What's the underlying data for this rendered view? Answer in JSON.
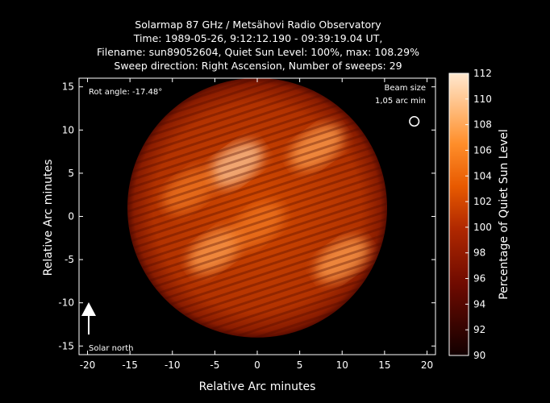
{
  "chart_data": {
    "type": "heatmap",
    "title_lines": [
      "Solarmap 87 GHz / Metsähovi Radio Observatory",
      "Time: 1989-05-26,  9:12:12.190 - 09:39:19.04 UT,",
      "Filename: sun89052604, Quiet Sun Level: 100%, max: 108.29%",
      "Sweep direction: Right Ascension, Number of sweeps: 29"
    ],
    "xlabel": "Relative Arc minutes",
    "ylabel": "Relative Arc minutes",
    "xlim": [
      -21,
      21
    ],
    "ylim": [
      -16,
      16
    ],
    "xticks": [
      -20,
      -15,
      -10,
      -5,
      0,
      5,
      10,
      15,
      20
    ],
    "yticks": [
      -15,
      -10,
      -5,
      0,
      5,
      10,
      15
    ],
    "colorbar": {
      "label": "Percentage of Quiet Sun Level",
      "min": 90,
      "max": 112,
      "ticks": [
        90,
        92,
        94,
        96,
        98,
        100,
        102,
        104,
        106,
        108,
        110,
        112
      ]
    },
    "annotations": {
      "rot_angle": "Rot angle: -17.48°",
      "beam_size_line1": "Beam size",
      "beam_size_line2": "1,05 arc min",
      "solar_north": "Solar north"
    },
    "disk": {
      "center": [
        0,
        1
      ],
      "radius": 15.3
    },
    "beam": {
      "center": [
        18.5,
        11
      ],
      "radius": 0.55
    },
    "bright_regions": [
      {
        "x": -2.5,
        "y": 6,
        "value": 108
      },
      {
        "x": 7,
        "y": 8,
        "value": 106
      },
      {
        "x": -5,
        "y": -4,
        "value": 106
      },
      {
        "x": 0,
        "y": -1,
        "value": 105
      },
      {
        "x": 10,
        "y": -5,
        "value": 107
      },
      {
        "x": -8,
        "y": 3,
        "value": 104
      }
    ],
    "colors": {
      "low": "#1a0000",
      "mid": "#d24c00",
      "high": "#ffe6c8"
    }
  }
}
